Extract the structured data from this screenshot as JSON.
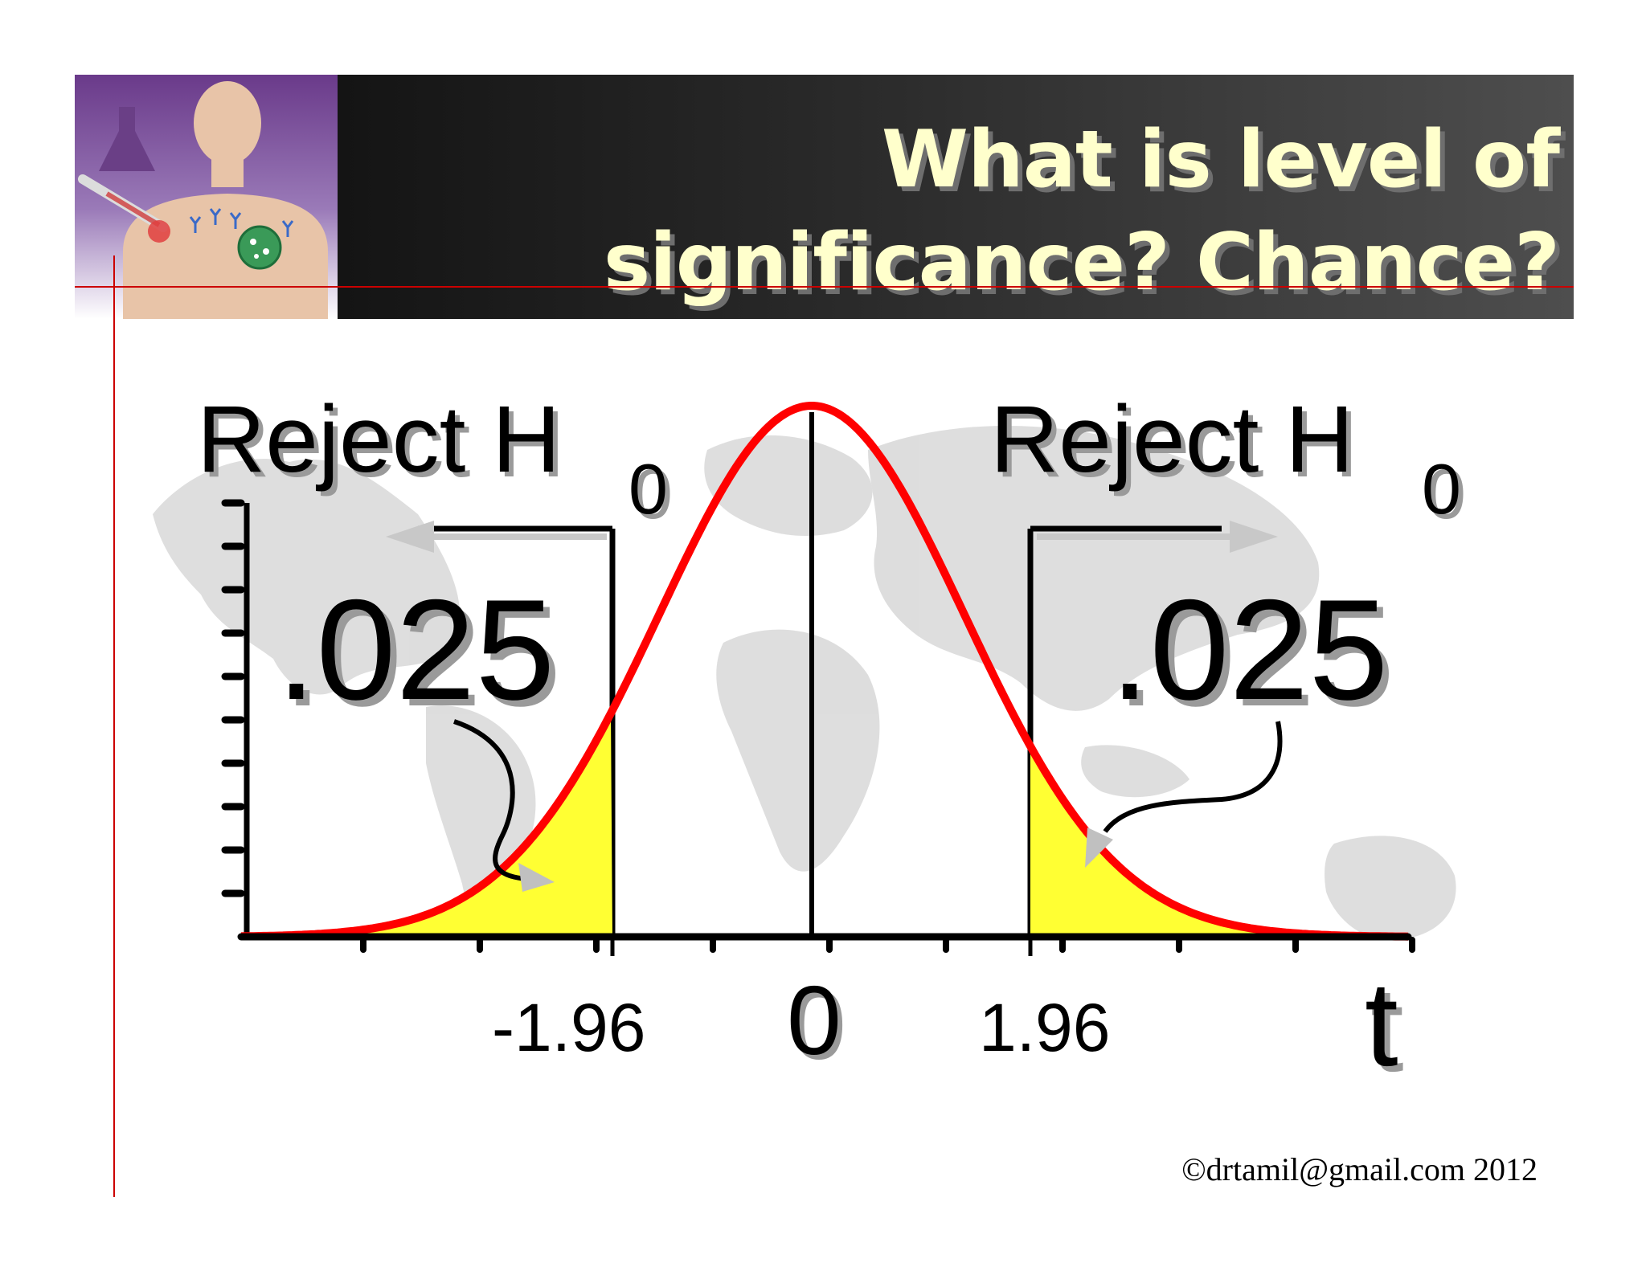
{
  "title": {
    "line1": "What is level of",
    "line2": "significance? Chance?"
  },
  "diagram": {
    "left_region_label": "Reject H",
    "left_region_subscript": "0",
    "right_region_label": "Reject H",
    "right_region_subscript": "0",
    "left_tail_area": ".025",
    "right_tail_area": ".025",
    "left_critical_value": "-1.96",
    "center_value": "0",
    "right_critical_value": "1.96",
    "axis_label": "t",
    "curve_color": "#ff0000",
    "tail_fill_color": "#ffff33"
  },
  "footer": {
    "copyright": "©drtamil@gmail.com 2012"
  }
}
